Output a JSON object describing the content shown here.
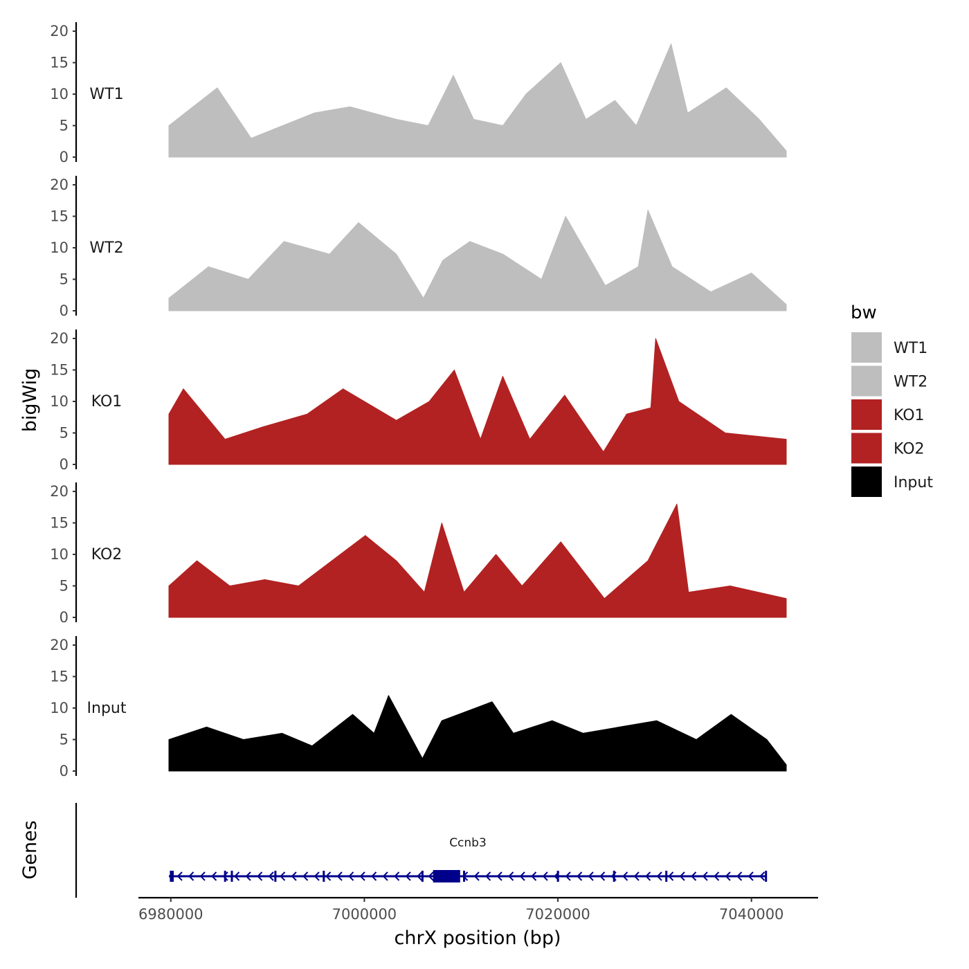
{
  "chart_data": {
    "type": "area",
    "ylabel": "bigWig",
    "xlabel": "chrX position (bp)",
    "ylim": [
      0,
      20
    ],
    "yticks": [
      0,
      5,
      10,
      15,
      20
    ],
    "xlim": [
      6979800,
      7043600
    ],
    "xticks": [
      6980000,
      7000000,
      7020000,
      7040000
    ],
    "xtick_labels": [
      "6980000",
      "7000000",
      "7020000",
      "7040000"
    ],
    "legend": {
      "title": "bw",
      "position": "right",
      "entries": [
        {
          "label": "WT1",
          "color": "#bebebe"
        },
        {
          "label": "WT2",
          "color": "#bebebe"
        },
        {
          "label": "KO1",
          "color": "#b22222"
        },
        {
          "label": "KO2",
          "color": "#b22222"
        },
        {
          "label": "Input",
          "color": "#000000"
        }
      ]
    },
    "tracks": [
      {
        "name": "WT1",
        "color": "#bebebe",
        "x": [
          6979800,
          6984800,
          6988300,
          6994800,
          6998500,
          7003300,
          7006600,
          7009200,
          7011300,
          7014300,
          7016700,
          7020300,
          7022900,
          7025900,
          7028100,
          7031700,
          7033400,
          7037400,
          7040800,
          7043600
        ],
        "y": [
          5,
          11,
          3,
          7,
          8,
          6,
          5,
          13,
          6,
          5,
          10,
          15,
          6,
          9,
          5,
          18,
          7,
          11,
          6,
          1
        ]
      },
      {
        "name": "WT2",
        "color": "#bebebe",
        "x": [
          6979800,
          6983900,
          6988000,
          6991700,
          6996400,
          6999400,
          7003300,
          7006100,
          7008100,
          7010900,
          7014300,
          7018300,
          7020800,
          7024900,
          7028300,
          7029300,
          7031800,
          7035800,
          7040000,
          7043600
        ],
        "y": [
          2,
          7,
          5,
          11,
          9,
          14,
          9,
          2,
          8,
          11,
          9,
          5,
          15,
          4,
          7,
          16,
          7,
          3,
          6,
          1
        ]
      },
      {
        "name": "KO1",
        "color": "#b22222",
        "x": [
          6979800,
          6981300,
          6985600,
          6989600,
          6994100,
          6997800,
          7003300,
          7006700,
          7009300,
          7012000,
          7014300,
          7017100,
          7020700,
          7024700,
          7027100,
          7029600,
          7030100,
          7032500,
          7037300,
          7043600
        ],
        "y": [
          8,
          12,
          4,
          6,
          8,
          12,
          7,
          10,
          15,
          4,
          14,
          4,
          11,
          2,
          8,
          9,
          20,
          10,
          5,
          4
        ]
      },
      {
        "name": "KO2",
        "color": "#b22222",
        "x": [
          6979800,
          6982700,
          6986100,
          6989700,
          6993200,
          6997500,
          7000100,
          7003300,
          7006200,
          7008000,
          7010300,
          7013600,
          7016300,
          7020300,
          7024800,
          7029300,
          7032300,
          7033500,
          7037800,
          7043600
        ],
        "y": [
          5,
          9,
          5,
          6,
          5,
          10,
          13,
          9,
          4,
          15,
          4,
          10,
          5,
          12,
          3,
          9,
          18,
          4,
          5,
          3
        ]
      },
      {
        "name": "Input",
        "color": "#000000",
        "x": [
          6979800,
          6983700,
          6987500,
          6991500,
          6994600,
          6998800,
          7001000,
          7002500,
          7006000,
          7008000,
          7013200,
          7015400,
          7019400,
          7022600,
          7026400,
          7030200,
          7034300,
          7037900,
          7041600,
          7043600
        ],
        "y": [
          5,
          7,
          5,
          6,
          4,
          9,
          6,
          12,
          2,
          8,
          11,
          6,
          8,
          6,
          7,
          8,
          5,
          9,
          5,
          1
        ]
      }
    ],
    "gene_track": {
      "label": "Genes",
      "gene_name": "Ccnb3",
      "color": "#00008b",
      "start": 6979800,
      "end": 7041600,
      "strand": "-",
      "exons": [
        {
          "start": 6979900,
          "end": 6980300
        },
        {
          "start": 6985500,
          "end": 6985600
        },
        {
          "start": 6986200,
          "end": 6986300
        },
        {
          "start": 6990700,
          "end": 6990800
        },
        {
          "start": 6995700,
          "end": 6995800
        },
        {
          "start": 7005900,
          "end": 7006000
        },
        {
          "start": 7007100,
          "end": 7009900
        },
        {
          "start": 7010200,
          "end": 7010400
        },
        {
          "start": 7019900,
          "end": 7020000
        },
        {
          "start": 7025700,
          "end": 7025800
        },
        {
          "start": 7031100,
          "end": 7031200
        },
        {
          "start": 7041400,
          "end": 7041600
        }
      ]
    }
  }
}
